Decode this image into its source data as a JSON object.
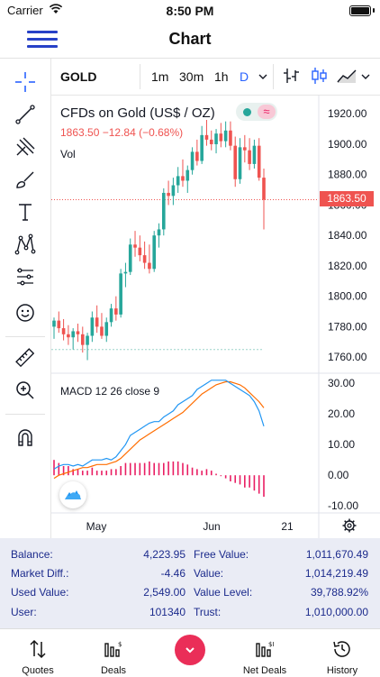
{
  "status_bar": {
    "carrier": "Carrier",
    "time": "8:50 PM"
  },
  "nav": {
    "title": "Chart"
  },
  "chart_header": {
    "symbol": "GOLD",
    "timeframes": [
      "1m",
      "30m",
      "1h",
      "D"
    ],
    "active_timeframe": "D"
  },
  "legend": {
    "title": "CFDs on Gold (US$ / OZ)",
    "quote": "1863.50  −12.84 (−0.68%)",
    "vol": "Vol",
    "macd": "MACD 12 26 close 9",
    "last_price": "1863.50"
  },
  "icons": {
    "toolbar": [
      "crosshair-icon",
      "trend-line-icon",
      "pitchfork-icon",
      "brush-icon",
      "text-icon",
      "pattern-icon",
      "prediction-icon",
      "emoji-icon",
      "ruler-icon",
      "zoom-in-icon",
      "magnet-icon"
    ],
    "chart_types": [
      "bar-chart-icon",
      "candle-chart-icon",
      "area-chart-icon"
    ]
  },
  "colors": {
    "up": "#26a69a",
    "down": "#ef5350",
    "macd_line": "#2196f3",
    "signal_line": "#ff6d00",
    "histogram": "#e91e63",
    "accent": "#2962ff",
    "nav_icon": "#2741c7"
  },
  "chart_data": {
    "type": "candlestick",
    "x_ticks": [
      "May",
      "Jun",
      "21"
    ],
    "price_axis": {
      "ticks": [
        "1920.00",
        "1900.00",
        "1880.00",
        "1860.00",
        "1840.00",
        "1820.00",
        "1800.00",
        "1780.00",
        "1760.00"
      ],
      "range": [
        1750,
        1932
      ]
    },
    "macd_axis": {
      "ticks": [
        "30.00",
        "20.00",
        "10.00",
        "0.00",
        "-10.00"
      ],
      "range": [
        -12,
        33
      ]
    },
    "candles": [
      {
        "o": 1780,
        "h": 1786,
        "l": 1772,
        "c": 1784
      },
      {
        "o": 1784,
        "h": 1790,
        "l": 1776,
        "c": 1779
      },
      {
        "o": 1779,
        "h": 1785,
        "l": 1771,
        "c": 1775
      },
      {
        "o": 1775,
        "h": 1781,
        "l": 1768,
        "c": 1773
      },
      {
        "o": 1773,
        "h": 1779,
        "l": 1765,
        "c": 1777
      },
      {
        "o": 1777,
        "h": 1782,
        "l": 1770,
        "c": 1775
      },
      {
        "o": 1775,
        "h": 1780,
        "l": 1763,
        "c": 1768
      },
      {
        "o": 1768,
        "h": 1776,
        "l": 1758,
        "c": 1774
      },
      {
        "o": 1774,
        "h": 1790,
        "l": 1770,
        "c": 1786
      },
      {
        "o": 1786,
        "h": 1794,
        "l": 1776,
        "c": 1780
      },
      {
        "o": 1780,
        "h": 1789,
        "l": 1772,
        "c": 1774
      },
      {
        "o": 1774,
        "h": 1786,
        "l": 1770,
        "c": 1783
      },
      {
        "o": 1783,
        "h": 1795,
        "l": 1780,
        "c": 1792
      },
      {
        "o": 1792,
        "h": 1800,
        "l": 1784,
        "c": 1788
      },
      {
        "o": 1788,
        "h": 1818,
        "l": 1786,
        "c": 1815
      },
      {
        "o": 1815,
        "h": 1822,
        "l": 1806,
        "c": 1816
      },
      {
        "o": 1816,
        "h": 1838,
        "l": 1814,
        "c": 1834
      },
      {
        "o": 1834,
        "h": 1843,
        "l": 1826,
        "c": 1832
      },
      {
        "o": 1832,
        "h": 1840,
        "l": 1823,
        "c": 1827
      },
      {
        "o": 1827,
        "h": 1836,
        "l": 1818,
        "c": 1822
      },
      {
        "o": 1822,
        "h": 1834,
        "l": 1815,
        "c": 1818
      },
      {
        "o": 1818,
        "h": 1843,
        "l": 1816,
        "c": 1840
      },
      {
        "o": 1840,
        "h": 1848,
        "l": 1832,
        "c": 1844
      },
      {
        "o": 1844,
        "h": 1871,
        "l": 1840,
        "c": 1868
      },
      {
        "o": 1868,
        "h": 1876,
        "l": 1860,
        "c": 1866
      },
      {
        "o": 1866,
        "h": 1878,
        "l": 1860,
        "c": 1873
      },
      {
        "o": 1873,
        "h": 1885,
        "l": 1868,
        "c": 1879
      },
      {
        "o": 1879,
        "h": 1890,
        "l": 1872,
        "c": 1876
      },
      {
        "o": 1876,
        "h": 1886,
        "l": 1868,
        "c": 1883
      },
      {
        "o": 1883,
        "h": 1898,
        "l": 1880,
        "c": 1895
      },
      {
        "o": 1895,
        "h": 1903,
        "l": 1886,
        "c": 1889
      },
      {
        "o": 1889,
        "h": 1912,
        "l": 1887,
        "c": 1906
      },
      {
        "o": 1906,
        "h": 1916,
        "l": 1899,
        "c": 1903
      },
      {
        "o": 1903,
        "h": 1909,
        "l": 1896,
        "c": 1900
      },
      {
        "o": 1900,
        "h": 1910,
        "l": 1894,
        "c": 1907
      },
      {
        "o": 1907,
        "h": 1914,
        "l": 1898,
        "c": 1902
      },
      {
        "o": 1902,
        "h": 1915,
        "l": 1898,
        "c": 1909
      },
      {
        "o": 1909,
        "h": 1915,
        "l": 1896,
        "c": 1899
      },
      {
        "o": 1899,
        "h": 1905,
        "l": 1872,
        "c": 1877
      },
      {
        "o": 1877,
        "h": 1904,
        "l": 1874,
        "c": 1898
      },
      {
        "o": 1898,
        "h": 1906,
        "l": 1888,
        "c": 1896
      },
      {
        "o": 1896,
        "h": 1904,
        "l": 1883,
        "c": 1887
      },
      {
        "o": 1887,
        "h": 1903,
        "l": 1884,
        "c": 1899
      },
      {
        "o": 1899,
        "h": 1904,
        "l": 1876,
        "c": 1878
      },
      {
        "o": 1878,
        "h": 1884,
        "l": 1844,
        "c": 1863.5
      }
    ],
    "macd_line": [
      2,
      3,
      3.5,
      3.5,
      3,
      3.5,
      3,
      4,
      5,
      5,
      5,
      5.5,
      5,
      6,
      8,
      10,
      13,
      14,
      15,
      16,
      17,
      17.5,
      17.5,
      19,
      20,
      21,
      23,
      24,
      25,
      26,
      28,
      29,
      30,
      31,
      31,
      31,
      31,
      30,
      29,
      28,
      27,
      26,
      24,
      21,
      16
    ],
    "signal_line": [
      -1,
      0,
      0.5,
      1,
      1.5,
      2,
      2.5,
      2.5,
      3,
      3.5,
      3.5,
      3.5,
      4,
      4.5,
      5.5,
      7,
      8.5,
      10,
      11.5,
      12.5,
      13.5,
      14.5,
      15.5,
      16.5,
      17.5,
      18.5,
      19.5,
      20.5,
      22,
      23.5,
      25,
      26.5,
      27.5,
      28.5,
      29.5,
      30,
      30.5,
      30.5,
      30,
      29.5,
      28.5,
      27,
      25.5,
      24,
      22
    ],
    "histogram": [
      5,
      4,
      3,
      3,
      2,
      2,
      1.5,
      1.5,
      2.5,
      1.5,
      1.5,
      1.5,
      2,
      2,
      3,
      4,
      4,
      4,
      4,
      4,
      4.5,
      4,
      4,
      4,
      4.5,
      4.5,
      4.5,
      4,
      3.5,
      2.5,
      2,
      1.5,
      2,
      1.5,
      0.5,
      0,
      -1,
      -2,
      -2.5,
      -3,
      -4,
      -4,
      -5,
      -6,
      -7
    ]
  },
  "account": {
    "left": [
      {
        "label": "Balance:",
        "value": "4,223.95"
      },
      {
        "label": "Market Diff.:",
        "value": "-4.46"
      },
      {
        "label": "Used Value:",
        "value": "2,549.00"
      },
      {
        "label": "User:",
        "value": "101340"
      }
    ],
    "right": [
      {
        "label": "Free Value:",
        "value": "1,011,670.49"
      },
      {
        "label": "Value:",
        "value": "1,014,219.49"
      },
      {
        "label": "Value Level:",
        "value": "39,788.92%"
      },
      {
        "label": "Trust:",
        "value": "1,010,000.00"
      }
    ]
  },
  "tabs": [
    {
      "label": "Quotes",
      "icon": "sort-arrows-icon"
    },
    {
      "label": "Deals",
      "icon": "deals-icon"
    },
    {
      "label": "",
      "icon": "chevron-down-icon"
    },
    {
      "label": "Net Deals",
      "icon": "net-deals-icon"
    },
    {
      "label": "History",
      "icon": "history-icon"
    }
  ]
}
